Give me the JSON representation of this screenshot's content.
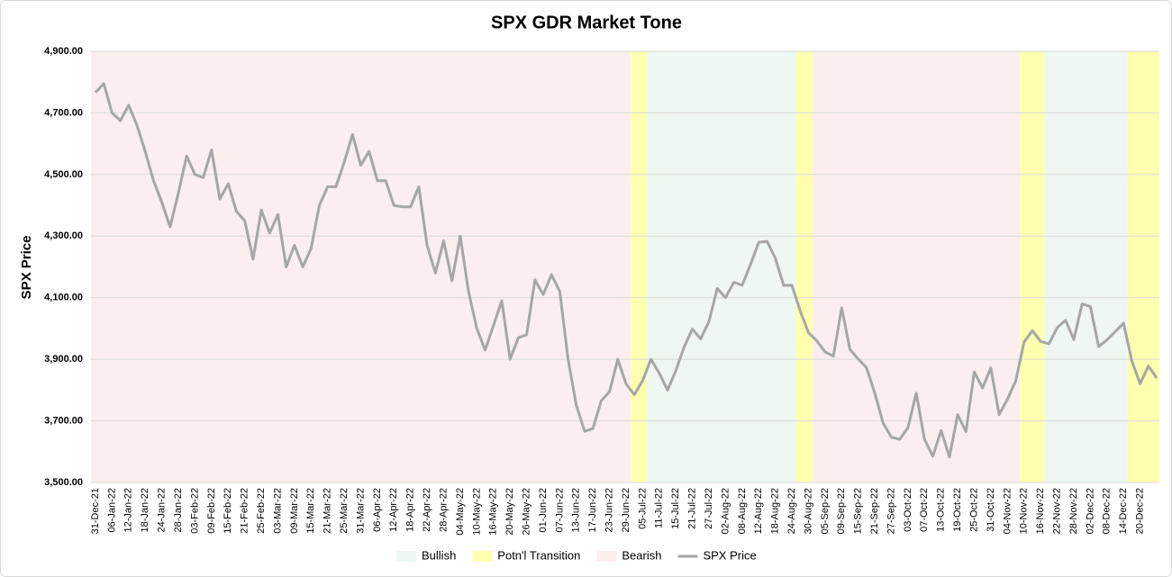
{
  "chart_data": {
    "type": "line",
    "title": "SPX GDR Market Tone",
    "y_label": "SPX Price",
    "categories": [
      "31-Dec-21",
      null,
      "06-Jan-22",
      null,
      "12-Jan-22",
      null,
      "18-Jan-22",
      null,
      "24-Jan-22",
      null,
      "28-Jan-22",
      null,
      "03-Feb-22",
      null,
      "09-Feb-22",
      null,
      "15-Feb-22",
      null,
      "21-Feb-22",
      null,
      "25-Feb-22",
      null,
      "03-Mar-22",
      null,
      "09-Mar-22",
      null,
      "15-Mar-22",
      null,
      "21-Mar-22",
      null,
      "25-Mar-22",
      null,
      "31-Mar-22",
      null,
      "06-Apr-22",
      null,
      "12-Apr-22",
      null,
      "18-Apr-22",
      null,
      "22-Apr-22",
      null,
      "28-Apr-22",
      null,
      "04-May-22",
      null,
      "10-May-22",
      null,
      "16-May-22",
      null,
      "20-May-22",
      null,
      "26-May-22",
      null,
      "01-Jun-22",
      null,
      "07-Jun-22",
      null,
      "13-Jun-22",
      null,
      "17-Jun-22",
      null,
      "23-Jun-22",
      null,
      "29-Jun-22",
      null,
      "05-Jul-22",
      null,
      "11-Jul-22",
      null,
      "15-Jul-22",
      null,
      "21-Jul-22",
      null,
      "27-Jul-22",
      null,
      "02-Aug-22",
      null,
      "08-Aug-22",
      null,
      "12-Aug-22",
      null,
      "18-Aug-22",
      null,
      "24-Aug-22",
      null,
      "30-Aug-22",
      null,
      "05-Sep-22",
      null,
      "09-Sep-22",
      null,
      "15-Sep-22",
      null,
      "21-Sep-22",
      null,
      "27-Sep-22",
      null,
      "03-Oct-22",
      null,
      "07-Oct-22",
      null,
      "13-Oct-22",
      null,
      "19-Oct-22",
      null,
      "25-Oct-22",
      null,
      "31-Oct-22",
      null,
      "04-Nov-22",
      null,
      "10-Nov-22",
      null,
      "16-Nov-22",
      null,
      "22-Nov-22",
      null,
      "28-Nov-22",
      null,
      "02-Dec-22",
      null,
      "08-Dec-22",
      null,
      "14-Dec-22",
      null,
      "20-Dec-22",
      null,
      null
    ],
    "series": [
      {
        "name": "SPX Price",
        "color": "#a6a6a6",
        "values": [
          4766,
          4795,
          4700,
          4675,
          4725,
          4660,
          4575,
          4480,
          4410,
          4330,
          4440,
          4560,
          4500,
          4490,
          4580,
          4420,
          4470,
          4380,
          4350,
          4225,
          4385,
          4310,
          4370,
          4200,
          4270,
          4200,
          4260,
          4400,
          4460,
          4460,
          4540,
          4630,
          4530,
          4575,
          4480,
          4480,
          4400,
          4395,
          4395,
          4460,
          4270,
          4180,
          4285,
          4155,
          4300,
          4120,
          4000,
          3930,
          4010,
          4090,
          3900,
          3970,
          3980,
          4158,
          4110,
          4175,
          4120,
          3900,
          3750,
          3666,
          3675,
          3765,
          3795,
          3900,
          3820,
          3785,
          3831,
          3900,
          3855,
          3800,
          3863,
          3940,
          3998,
          3966,
          4023,
          4130,
          4100,
          4150,
          4140,
          4207,
          4280,
          4283,
          4228,
          4140,
          4140,
          4057,
          3986,
          3960,
          3924,
          3910,
          4067,
          3932,
          3901,
          3873,
          3790,
          3693,
          3647,
          3640,
          3678,
          3790,
          3640,
          3585,
          3669,
          3583,
          3720,
          3665,
          3859,
          3807,
          3872,
          3720,
          3770,
          3830,
          3956,
          3993,
          3958,
          3950,
          4003,
          4027,
          3964,
          4080,
          4071,
          3941,
          3963,
          3990,
          4017,
          3895,
          3821,
          3878,
          3839
        ]
      }
    ],
    "tones": [
      {
        "name": "Bullish",
        "color": "#eef7f1"
      },
      {
        "name": "Potn'l Transition",
        "color": "#ffffb0"
      },
      {
        "name": "Bearish",
        "color": "#fbeeee"
      }
    ],
    "regions": [
      {
        "tone": "Bearish",
        "start": 0,
        "end": 64
      },
      {
        "tone": "Potn'l Transition",
        "start": 65,
        "end": 66
      },
      {
        "tone": "Bullish",
        "start": 67,
        "end": 84
      },
      {
        "tone": "Potn'l Transition",
        "start": 85,
        "end": 86
      },
      {
        "tone": "Bearish",
        "start": 87,
        "end": 111
      },
      {
        "tone": "Potn'l Transition",
        "start": 112,
        "end": 114
      },
      {
        "tone": "Bullish",
        "start": 115,
        "end": 124
      },
      {
        "tone": "Potn'l Transition",
        "start": 125,
        "end": 128
      }
    ],
    "ylim": [
      3500,
      4900
    ],
    "yticks": [
      {
        "value": 3500,
        "label": "3,500.00"
      },
      {
        "value": 3700,
        "label": "3,700.00"
      },
      {
        "value": 3900,
        "label": "3,900.00"
      },
      {
        "value": 4100,
        "label": "4,100.00"
      },
      {
        "value": 4300,
        "label": "4,300.00"
      },
      {
        "value": 4500,
        "label": "4,500.00"
      },
      {
        "value": 4700,
        "label": "4,700.00"
      },
      {
        "value": 4900,
        "label": "4,900.00"
      }
    ],
    "grid": true,
    "legend": "bottom"
  }
}
